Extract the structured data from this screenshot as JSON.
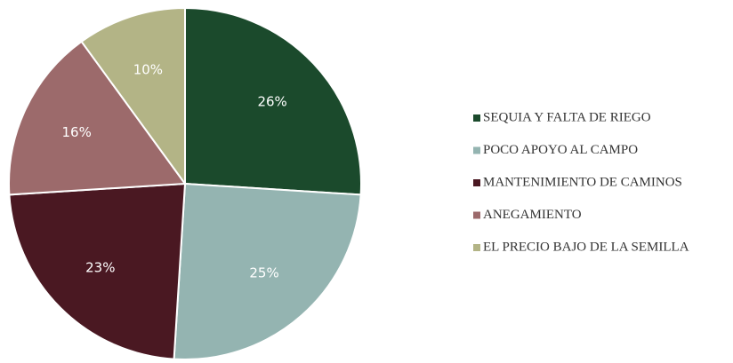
{
  "chart_data": {
    "type": "pie",
    "categories": [
      "SEQUIA Y FALTA DE RIEGO",
      "POCO APOYO AL CAMPO",
      "MANTENIMIENTO DE CAMINOS",
      "ANEGAMIENTO",
      "EL PRECIO BAJO DE LA SEMILLA"
    ],
    "values": [
      26,
      25,
      23,
      16,
      10
    ],
    "value_labels": [
      "26%",
      "25%",
      "23%",
      "16%",
      "10%"
    ],
    "colors": [
      "#1b4a2c",
      "#94b4b1",
      "#4a1822",
      "#9c6a6b",
      "#b3b486"
    ],
    "legend": "right"
  }
}
